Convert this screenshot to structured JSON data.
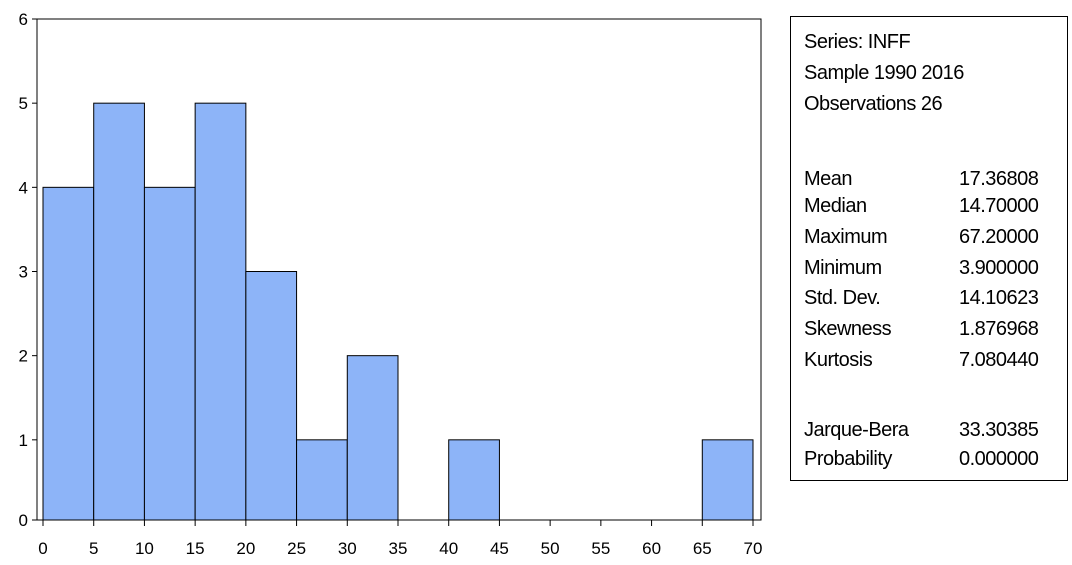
{
  "chart_data": {
    "type": "bar",
    "subtype": "histogram",
    "bin_edges": [
      0,
      5,
      10,
      15,
      20,
      25,
      30,
      35,
      40,
      45,
      50,
      55,
      60,
      65,
      70
    ],
    "values": [
      4,
      5,
      4,
      5,
      3,
      1,
      2,
      0,
      1,
      0,
      0,
      0,
      0,
      1
    ],
    "x_ticks": [
      "0",
      "5",
      "10",
      "15",
      "20",
      "25",
      "30",
      "35",
      "40",
      "45",
      "50",
      "55",
      "60",
      "65",
      "70"
    ],
    "y_ticks": [
      "0",
      "1",
      "2",
      "3",
      "4",
      "5",
      "6"
    ],
    "xlim": [
      0,
      70
    ],
    "ylim": [
      0,
      6
    ],
    "bar_color": "#8db4f8",
    "grid": false
  },
  "stats": {
    "series": "Series: INFF",
    "sample": "Sample 1990 2016",
    "observations": "Observations 26",
    "rows": [
      {
        "name": "Mean",
        "value": "17.36808"
      },
      {
        "name": "Median",
        "value": "14.70000"
      },
      {
        "name": "Maximum",
        "value": "67.20000"
      },
      {
        "name": "Minimum",
        "value": "3.900000"
      },
      {
        "name": "Std. Dev.",
        "value": "14.10623"
      },
      {
        "name": "Skewness",
        "value": "1.876968"
      },
      {
        "name": "Kurtosis",
        "value": "7.080440"
      }
    ],
    "test_rows": [
      {
        "name": "Jarque-Bera",
        "value": "33.30385"
      },
      {
        "name": "Probability",
        "value": "0.000000"
      }
    ]
  }
}
